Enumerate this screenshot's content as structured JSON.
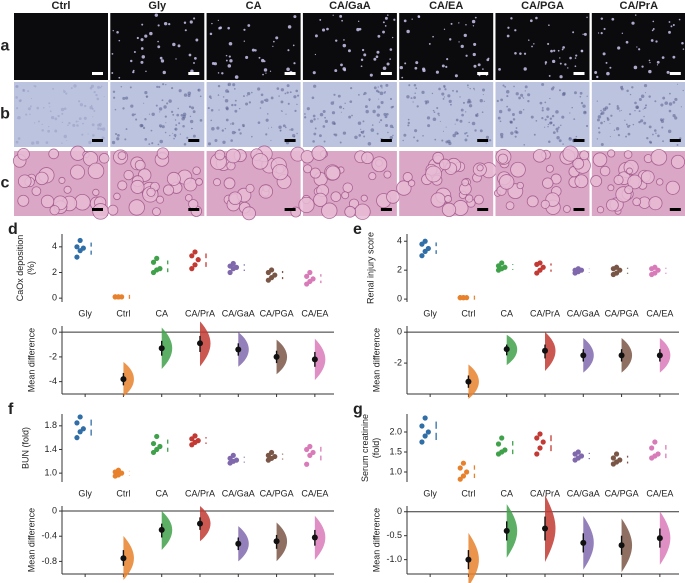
{
  "micrographs": {
    "rows": [
      "a",
      "b",
      "c"
    ],
    "columns": [
      "Ctrl",
      "Gly",
      "CA",
      "CA/GaA",
      "CA/EA",
      "CA/PGA",
      "CA/PrA"
    ]
  },
  "chart_data": [
    {
      "type": "estimation",
      "panel": "d",
      "ylabel": [
        "CaOx deposition",
        "(%)"
      ],
      "categories": [
        "Gly",
        "Ctrl",
        "CA",
        "CA/PrA",
        "CA/GaA",
        "CA/PGA",
        "CA/EA"
      ],
      "colors": [
        "#2f6ea6",
        "#e8812b",
        "#3fa14a",
        "#c23a33",
        "#8068ad",
        "#7a5647",
        "#d97bb8"
      ],
      "ylim": [
        -0.3,
        5
      ],
      "yticks": [
        0,
        2,
        4
      ],
      "points": [
        [
          3.2,
          3.7,
          3.9,
          4.0,
          4.5
        ],
        [
          0.1,
          0.1,
          0.1,
          0.1,
          0.1
        ],
        [
          2.0,
          2.2,
          2.3,
          2.8,
          3.1
        ],
        [
          2.3,
          2.6,
          3.0,
          3.3,
          3.6
        ],
        [
          2.0,
          2.3,
          2.4,
          2.5,
          2.7
        ],
        [
          1.4,
          1.6,
          1.8,
          2.0,
          2.2
        ],
        [
          1.1,
          1.3,
          1.5,
          1.7,
          2.0
        ]
      ],
      "diff": {
        "ylabel": "Mean difference",
        "ylim": [
          -5,
          0.5
        ],
        "yticks": [
          0,
          -2,
          -4
        ],
        "values": [
          -3.8,
          -1.3,
          -0.9,
          -1.4,
          -2.0,
          -2.2
        ],
        "ci": [
          [
            -4.3,
            -3.3
          ],
          [
            -1.9,
            -0.7
          ],
          [
            -1.6,
            -0.3
          ],
          [
            -1.9,
            -0.9
          ],
          [
            -2.5,
            -1.5
          ],
          [
            -2.8,
            -1.6
          ]
        ]
      }
    },
    {
      "type": "estimation",
      "panel": "e",
      "ylabel": [
        "Renal injury score"
      ],
      "categories": [
        "Gly",
        "Ctrl",
        "CA",
        "CA/PrA",
        "CA/GaA",
        "CA/PGA",
        "CA/EA"
      ],
      "colors": [
        "#2f6ea6",
        "#e8812b",
        "#3fa14a",
        "#c23a33",
        "#8068ad",
        "#7a5647",
        "#d97bb8"
      ],
      "ylim": [
        -0.2,
        4.5
      ],
      "yticks": [
        0,
        2,
        4
      ],
      "points": [
        [
          3.0,
          3.3,
          3.5,
          3.8,
          4.0
        ],
        [
          0.1,
          0.1,
          0.1,
          0.1,
          0.1
        ],
        [
          2.0,
          2.1,
          2.2,
          2.3,
          2.5
        ],
        [
          1.8,
          2.0,
          2.2,
          2.4,
          2.5
        ],
        [
          1.8,
          1.9,
          2.0,
          2.0,
          2.1
        ],
        [
          1.7,
          1.8,
          2.0,
          2.1,
          2.2
        ],
        [
          1.7,
          1.8,
          2.0,
          2.1,
          2.2
        ]
      ],
      "diff": {
        "ylabel": "Mean difference",
        "ylim": [
          -4,
          0.4
        ],
        "yticks": [
          0,
          -2
        ],
        "values": [
          -3.2,
          -1.1,
          -1.2,
          -1.5,
          -1.5,
          -1.5
        ],
        "ci": [
          [
            -3.6,
            -2.8
          ],
          [
            -1.5,
            -0.8
          ],
          [
            -1.7,
            -0.8
          ],
          [
            -1.9,
            -1.1
          ],
          [
            -1.9,
            -1.1
          ],
          [
            -1.9,
            -1.1
          ]
        ]
      }
    },
    {
      "type": "estimation",
      "panel": "f",
      "ylabel": [
        "BUN (fold)"
      ],
      "categories": [
        "Gly",
        "Ctrl",
        "CA",
        "CA/PrA",
        "CA/GaA",
        "CA/PGA",
        "CA/EA"
      ],
      "colors": [
        "#2f6ea6",
        "#e8812b",
        "#3fa14a",
        "#c23a33",
        "#8068ad",
        "#7a5647",
        "#d97bb8"
      ],
      "ylim": [
        0.85,
        2.0
      ],
      "yticks": [
        {
          "value": 1,
          "label": "1.0"
        },
        1.4,
        1.8
      ],
      "points": [
        [
          1.6,
          1.7,
          1.75,
          1.85,
          1.95
        ],
        [
          0.95,
          0.97,
          1.0,
          1.02,
          1.05
        ],
        [
          1.35,
          1.4,
          1.45,
          1.5,
          1.62
        ],
        [
          1.48,
          1.52,
          1.55,
          1.58,
          1.63
        ],
        [
          1.17,
          1.2,
          1.22,
          1.25,
          1.3
        ],
        [
          1.22,
          1.25,
          1.28,
          1.3,
          1.35
        ],
        [
          1.15,
          1.3,
          1.35,
          1.4,
          1.45
        ]
      ],
      "diff": {
        "ylabel": "Mean difference",
        "ylim": [
          -1.0,
          0.08
        ],
        "yticks": [
          0,
          -0.4,
          -0.8
        ],
        "values": [
          -0.75,
          -0.3,
          -0.2,
          -0.52,
          -0.48,
          -0.42
        ],
        "ci": [
          [
            -0.87,
            -0.62
          ],
          [
            -0.42,
            -0.2
          ],
          [
            -0.3,
            -0.1
          ],
          [
            -0.62,
            -0.42
          ],
          [
            -0.6,
            -0.38
          ],
          [
            -0.55,
            -0.3
          ]
        ]
      }
    },
    {
      "type": "estimation",
      "panel": "g",
      "ylabel": [
        "Serum creatinine",
        "(fold)"
      ],
      "categories": [
        "Gly",
        "Ctrl",
        "CA",
        "CA/PrA",
        "CA/GaA",
        "CA/PGA",
        "CA/EA"
      ],
      "colors": [
        "#2f6ea6",
        "#e8812b",
        "#3fa14a",
        "#c23a33",
        "#8068ad",
        "#7a5647",
        "#d97bb8"
      ],
      "ylim": [
        0.75,
        2.45
      ],
      "yticks": [
        {
          "value": 1,
          "label": "1.0"
        },
        1.5,
        {
          "value": 2,
          "label": "2.0"
        }
      ],
      "points": [
        [
          1.75,
          1.9,
          2.0,
          2.15,
          2.35
        ],
        [
          0.82,
          0.9,
          1.0,
          1.1,
          1.22
        ],
        [
          1.45,
          1.5,
          1.55,
          1.7,
          1.85
        ],
        [
          1.45,
          1.6,
          1.75,
          1.85,
          1.95
        ],
        [
          1.3,
          1.35,
          1.4,
          1.45,
          1.5
        ],
        [
          1.2,
          1.25,
          1.3,
          1.35,
          1.45
        ],
        [
          1.35,
          1.4,
          1.45,
          1.6,
          1.75
        ]
      ],
      "diff": {
        "ylabel": "Mean difference",
        "ylim": [
          -1.3,
          0.12
        ],
        "yticks": [
          0,
          -0.5,
          {
            "value": -1,
            "label": "-1.0"
          }
        ],
        "values": [
          -1.0,
          -0.4,
          -0.35,
          -0.65,
          -0.7,
          -0.55
        ],
        "ci": [
          [
            -1.2,
            -0.8
          ],
          [
            -0.6,
            -0.2
          ],
          [
            -0.6,
            -0.1
          ],
          [
            -0.85,
            -0.45
          ],
          [
            -0.9,
            -0.5
          ],
          [
            -0.75,
            -0.35
          ]
        ]
      }
    }
  ]
}
